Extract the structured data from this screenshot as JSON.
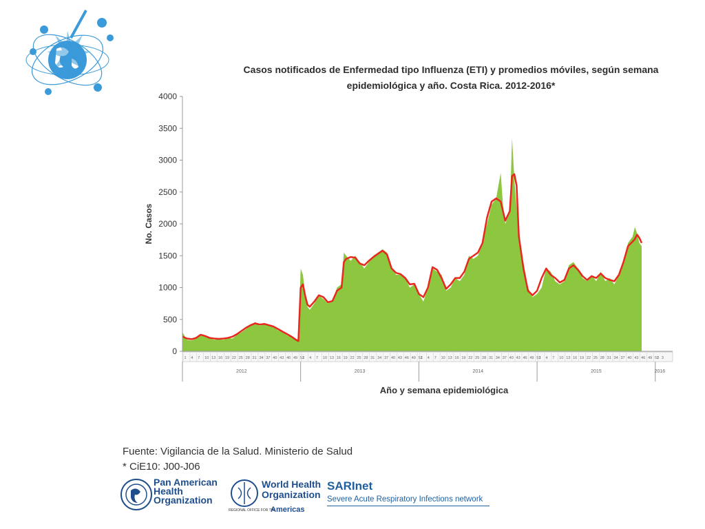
{
  "header": {
    "title_line1": "Casos notificados de Enfermedad tipo Influenza (ETI) y promedios móviles, según semana",
    "title_line2": "epidemiológica y año.  Costa Rica. 2012-2016*"
  },
  "footer": {
    "source": "Fuente: Vigilancia de la Salud. Ministerio de Salud",
    "note": "* CiE10: J00-J06"
  },
  "partners": {
    "paho": "Pan American Health Organization",
    "who": "World Health Organization",
    "who_region": "REGIONAL OFFICE FOR THE",
    "who_americas": "Americas",
    "sari": "SARInet",
    "sari_full": "Severe Acute Respiratory Infections network"
  },
  "chart_data": {
    "type": "area",
    "title": "Casos notificados de Enfermedad tipo Influenza (ETI) y promedios móviles, según semana epidemiológica y año.  Costa Rica. 2012-2016*",
    "xlabel": "Año y semana epidemiológica",
    "ylabel": "No. Casos",
    "ylim": [
      0,
      4000
    ],
    "yticks": [
      0,
      500,
      1000,
      1500,
      2000,
      2500,
      3000,
      3500,
      4000
    ],
    "grid": false,
    "legend": "none",
    "years": [
      "2012",
      "2013",
      "2014",
      "2015",
      "2016"
    ],
    "x_span_weeks": 212,
    "year_boundaries_week": [
      52,
      104,
      156,
      208
    ],
    "week_tick_labels": [
      "1",
      "4",
      "7",
      "10",
      "13",
      "16",
      "19",
      "22",
      "25",
      "28",
      "31",
      "34",
      "37",
      "40",
      "43",
      "46",
      "49",
      "52"
    ],
    "series": [
      {
        "kind": "area",
        "color": "#8dc63f",
        "points": [
          [
            0,
            300
          ],
          [
            2,
            180
          ],
          [
            4,
            170
          ],
          [
            6,
            200
          ],
          [
            8,
            250
          ],
          [
            10,
            230
          ],
          [
            12,
            200
          ],
          [
            14,
            180
          ],
          [
            16,
            190
          ],
          [
            18,
            180
          ],
          [
            20,
            210
          ],
          [
            22,
            200
          ],
          [
            24,
            260
          ],
          [
            26,
            300
          ],
          [
            28,
            350
          ],
          [
            30,
            420
          ],
          [
            32,
            450
          ],
          [
            34,
            400
          ],
          [
            36,
            430
          ],
          [
            38,
            400
          ],
          [
            40,
            380
          ],
          [
            42,
            330
          ],
          [
            44,
            300
          ],
          [
            46,
            250
          ],
          [
            48,
            220
          ],
          [
            50,
            170
          ],
          [
            51,
            150
          ],
          [
            52,
            1300
          ],
          [
            53,
            1200
          ],
          [
            54,
            900
          ],
          [
            55,
            700
          ],
          [
            56,
            650
          ],
          [
            58,
            750
          ],
          [
            60,
            870
          ],
          [
            62,
            820
          ],
          [
            64,
            750
          ],
          [
            66,
            800
          ],
          [
            68,
            1000
          ],
          [
            70,
            1050
          ],
          [
            71,
            1550
          ],
          [
            72,
            1500
          ],
          [
            74,
            1420
          ],
          [
            76,
            1500
          ],
          [
            78,
            1400
          ],
          [
            80,
            1300
          ],
          [
            82,
            1400
          ],
          [
            84,
            1500
          ],
          [
            86,
            1550
          ],
          [
            88,
            1600
          ],
          [
            90,
            1550
          ],
          [
            92,
            1300
          ],
          [
            94,
            1200
          ],
          [
            96,
            1200
          ],
          [
            98,
            1150
          ],
          [
            100,
            1000
          ],
          [
            102,
            1050
          ],
          [
            104,
            900
          ],
          [
            106,
            780
          ],
          [
            108,
            1000
          ],
          [
            110,
            1300
          ],
          [
            112,
            1250
          ],
          [
            114,
            1200
          ],
          [
            116,
            950
          ],
          [
            118,
            1000
          ],
          [
            120,
            1150
          ],
          [
            122,
            1100
          ],
          [
            124,
            1200
          ],
          [
            126,
            1500
          ],
          [
            128,
            1450
          ],
          [
            130,
            1500
          ],
          [
            132,
            1700
          ],
          [
            134,
            2000
          ],
          [
            136,
            2300
          ],
          [
            138,
            2400
          ],
          [
            140,
            2800
          ],
          [
            141,
            2300
          ],
          [
            142,
            2000
          ],
          [
            144,
            2200
          ],
          [
            145,
            3350
          ],
          [
            146,
            2700
          ],
          [
            148,
            1800
          ],
          [
            150,
            1400
          ],
          [
            152,
            1000
          ],
          [
            154,
            850
          ],
          [
            156,
            900
          ],
          [
            158,
            1000
          ],
          [
            160,
            1300
          ],
          [
            162,
            1250
          ],
          [
            164,
            1100
          ],
          [
            166,
            1050
          ],
          [
            168,
            1100
          ],
          [
            170,
            1350
          ],
          [
            172,
            1400
          ],
          [
            174,
            1300
          ],
          [
            176,
            1150
          ],
          [
            178,
            1100
          ],
          [
            180,
            1200
          ],
          [
            182,
            1100
          ],
          [
            184,
            1250
          ],
          [
            186,
            1100
          ],
          [
            188,
            1150
          ],
          [
            190,
            1050
          ],
          [
            192,
            1200
          ],
          [
            194,
            1400
          ],
          [
            196,
            1700
          ],
          [
            198,
            1800
          ],
          [
            199,
            1950
          ],
          [
            200,
            1850
          ],
          [
            201,
            1700
          ],
          [
            202,
            1650
          ]
        ]
      },
      {
        "kind": "line",
        "color": "#e8281e",
        "points": [
          [
            0,
            230
          ],
          [
            2,
            200
          ],
          [
            4,
            190
          ],
          [
            6,
            210
          ],
          [
            8,
            260
          ],
          [
            10,
            240
          ],
          [
            12,
            210
          ],
          [
            14,
            200
          ],
          [
            16,
            195
          ],
          [
            18,
            200
          ],
          [
            20,
            210
          ],
          [
            22,
            230
          ],
          [
            24,
            270
          ],
          [
            26,
            320
          ],
          [
            28,
            370
          ],
          [
            30,
            410
          ],
          [
            32,
            440
          ],
          [
            34,
            420
          ],
          [
            36,
            430
          ],
          [
            38,
            410
          ],
          [
            40,
            390
          ],
          [
            42,
            350
          ],
          [
            44,
            310
          ],
          [
            46,
            270
          ],
          [
            48,
            230
          ],
          [
            50,
            180
          ],
          [
            51,
            160
          ],
          [
            52,
            1000
          ],
          [
            53,
            1050
          ],
          [
            54,
            870
          ],
          [
            55,
            730
          ],
          [
            56,
            700
          ],
          [
            58,
            780
          ],
          [
            60,
            880
          ],
          [
            62,
            850
          ],
          [
            64,
            770
          ],
          [
            66,
            790
          ],
          [
            68,
            950
          ],
          [
            70,
            1000
          ],
          [
            71,
            1400
          ],
          [
            72,
            1450
          ],
          [
            74,
            1480
          ],
          [
            76,
            1470
          ],
          [
            78,
            1380
          ],
          [
            80,
            1350
          ],
          [
            82,
            1420
          ],
          [
            84,
            1480
          ],
          [
            86,
            1530
          ],
          [
            88,
            1580
          ],
          [
            90,
            1520
          ],
          [
            92,
            1300
          ],
          [
            94,
            1230
          ],
          [
            96,
            1210
          ],
          [
            98,
            1150
          ],
          [
            100,
            1050
          ],
          [
            102,
            1060
          ],
          [
            104,
            900
          ],
          [
            106,
            850
          ],
          [
            108,
            1000
          ],
          [
            110,
            1320
          ],
          [
            112,
            1280
          ],
          [
            114,
            1150
          ],
          [
            116,
            980
          ],
          [
            118,
            1050
          ],
          [
            120,
            1150
          ],
          [
            122,
            1150
          ],
          [
            124,
            1250
          ],
          [
            126,
            1450
          ],
          [
            128,
            1500
          ],
          [
            130,
            1550
          ],
          [
            132,
            1700
          ],
          [
            134,
            2100
          ],
          [
            136,
            2350
          ],
          [
            138,
            2400
          ],
          [
            140,
            2350
          ],
          [
            141,
            2200
          ],
          [
            142,
            2050
          ],
          [
            144,
            2200
          ],
          [
            145,
            2750
          ],
          [
            146,
            2780
          ],
          [
            147,
            2600
          ],
          [
            148,
            1800
          ],
          [
            150,
            1300
          ],
          [
            152,
            950
          ],
          [
            154,
            880
          ],
          [
            156,
            950
          ],
          [
            158,
            1150
          ],
          [
            160,
            1300
          ],
          [
            162,
            1200
          ],
          [
            164,
            1150
          ],
          [
            166,
            1080
          ],
          [
            168,
            1120
          ],
          [
            170,
            1300
          ],
          [
            172,
            1350
          ],
          [
            174,
            1280
          ],
          [
            176,
            1180
          ],
          [
            178,
            1120
          ],
          [
            180,
            1180
          ],
          [
            182,
            1150
          ],
          [
            184,
            1220
          ],
          [
            186,
            1150
          ],
          [
            188,
            1120
          ],
          [
            190,
            1100
          ],
          [
            192,
            1200
          ],
          [
            194,
            1400
          ],
          [
            196,
            1650
          ],
          [
            198,
            1720
          ],
          [
            199,
            1760
          ],
          [
            200,
            1830
          ],
          [
            201,
            1780
          ],
          [
            202,
            1700
          ]
        ]
      }
    ]
  }
}
